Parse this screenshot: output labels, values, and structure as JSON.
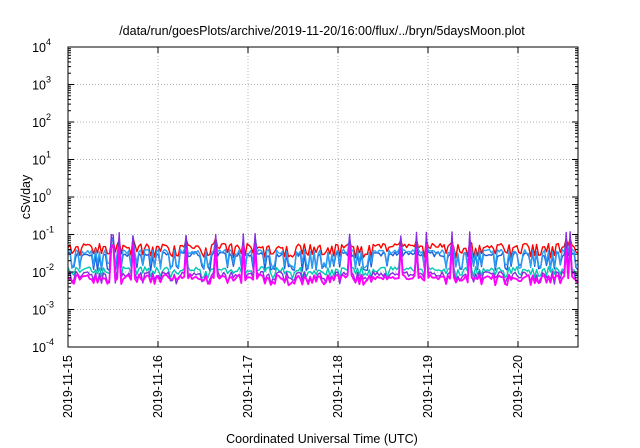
{
  "chart_data": {
    "type": "line",
    "title": "/data/run/goesPlots/archive/2019-11-20/16:00/flux/../bryn/5daysMoon.plot",
    "xlabel": "Coordinated Universal Time (UTC)",
    "ylabel": "cSv/day",
    "y_scale": "log",
    "ylim": [
      0.0001,
      10000
    ],
    "y_ticks": [
      {
        "base": "10",
        "exp": "4",
        "value": 10000
      },
      {
        "base": "10",
        "exp": "3",
        "value": 1000
      },
      {
        "base": "10",
        "exp": "2",
        "value": 100
      },
      {
        "base": "10",
        "exp": "1",
        "value": 10
      },
      {
        "base": "10",
        "exp": "0",
        "value": 1
      },
      {
        "base": "10",
        "exp": "-1",
        "value": 0.1
      },
      {
        "base": "10",
        "exp": "-2",
        "value": 0.01
      },
      {
        "base": "10",
        "exp": "-3",
        "value": 0.001
      },
      {
        "base": "10",
        "exp": "-4",
        "value": 0.0001
      }
    ],
    "xlim": [
      "2019-11-15",
      "2019-11-20T16:00"
    ],
    "x_ticks": [
      "2019-11-15",
      "2019-11-16",
      "2019-11-17",
      "2019-11-18",
      "2019-11-19",
      "2019-11-20"
    ],
    "grid": true,
    "series": [
      {
        "color": "#ff0000",
        "baseline": 0.05,
        "dip": 0.03,
        "spike": 0.075
      },
      {
        "color": "#1e5ed8",
        "baseline": 0.03,
        "dip": 0.013,
        "spike": 0.085
      },
      {
        "color": "#2a9df4",
        "baseline": 0.035,
        "dip": 0.015,
        "spike": 0.07
      },
      {
        "color": "#00c8b4",
        "baseline": 0.012,
        "dip": 0.0085,
        "spike": 0.06
      },
      {
        "color": "#8a2be2",
        "baseline": 0.009,
        "dip": 0.006,
        "spike": 0.11
      },
      {
        "color": "#ff00ff",
        "baseline": 0.0075,
        "dip": 0.0055,
        "spike": 0.05
      }
    ]
  }
}
